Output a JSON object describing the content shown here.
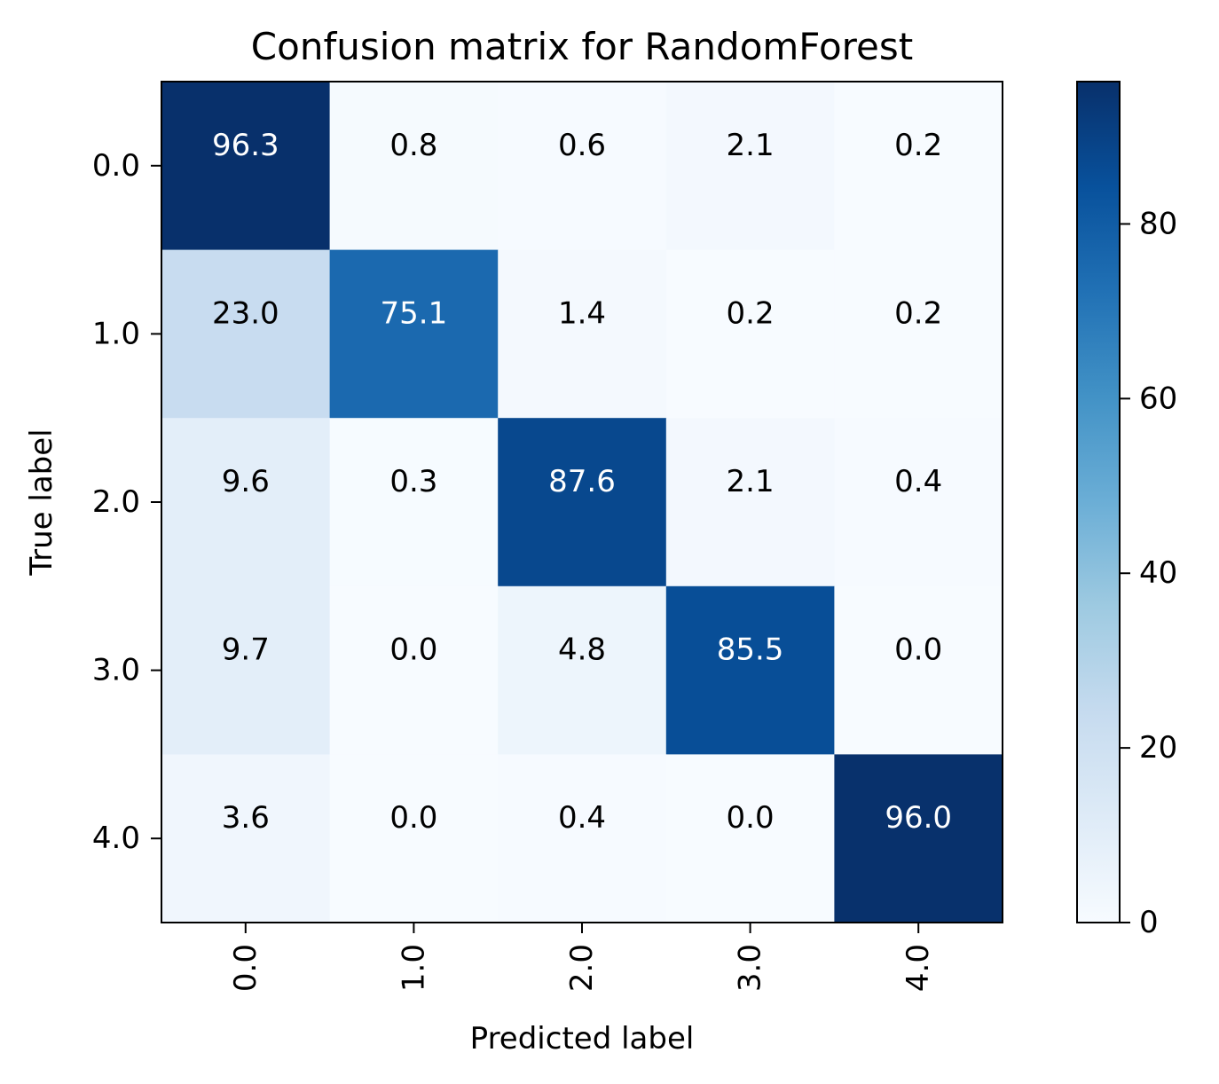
{
  "chart_data": {
    "type": "heatmap",
    "title": "Confusion matrix for RandomForest",
    "xlabel": "Predicted label",
    "ylabel": "True label",
    "x_categories": [
      "0.0",
      "1.0",
      "2.0",
      "3.0",
      "4.0"
    ],
    "y_categories": [
      "0.0",
      "1.0",
      "2.0",
      "3.0",
      "4.0"
    ],
    "values": [
      [
        96.3,
        0.8,
        0.6,
        2.1,
        0.2
      ],
      [
        23.0,
        75.1,
        1.4,
        0.2,
        0.2
      ],
      [
        9.6,
        0.3,
        87.6,
        2.1,
        0.4
      ],
      [
        9.7,
        0.0,
        4.8,
        85.5,
        0.0
      ],
      [
        3.6,
        0.0,
        0.4,
        0.0,
        96.0
      ]
    ],
    "value_labels": [
      [
        "96.3",
        "0.8",
        "0.6",
        "2.1",
        "0.2"
      ],
      [
        "23.0",
        "75.1",
        "1.4",
        "0.2",
        "0.2"
      ],
      [
        "9.6",
        "0.3",
        "87.6",
        "2.1",
        "0.4"
      ],
      [
        "9.7",
        "0.0",
        "4.8",
        "85.5",
        "0.0"
      ],
      [
        "3.6",
        "0.0",
        "0.4",
        "0.0",
        "96.0"
      ]
    ],
    "colormap": "Blues",
    "vmin": 0,
    "vmax": 96.3,
    "colorbar_ticks": [
      0,
      20,
      40,
      60,
      80
    ],
    "colorbar_tick_labels": [
      "0",
      "20",
      "40",
      "60",
      "80"
    ],
    "text_color_light": "#ffffff",
    "text_color_dark": "#000000",
    "grid": false
  }
}
